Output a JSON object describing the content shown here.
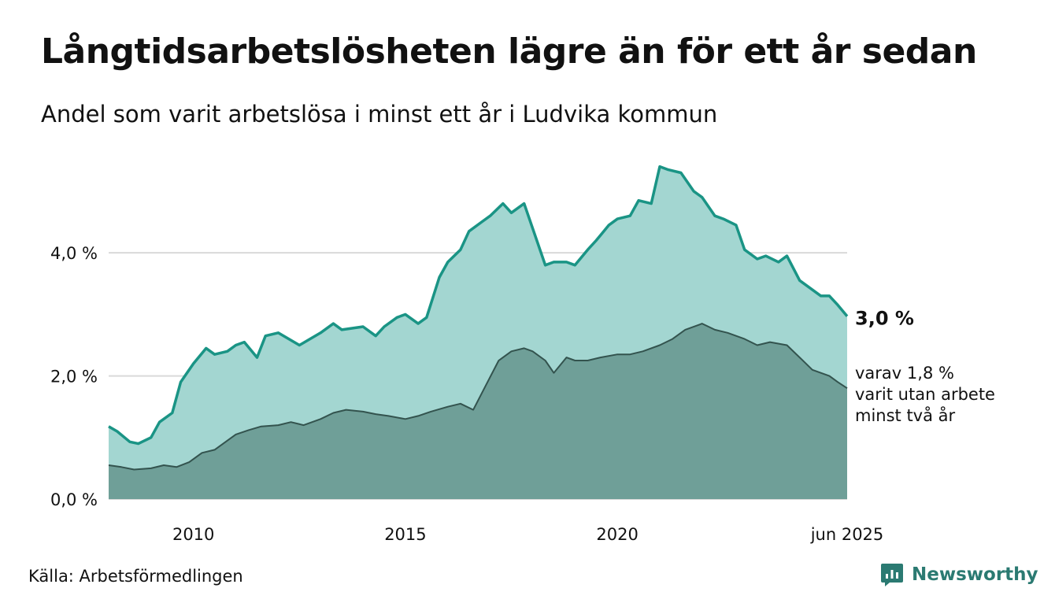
{
  "title": "Långtidsarbetslösheten lägre än för ett år sedan",
  "subtitle": "Andel som varit arbetslösa i minst ett år i Ludvika kommun",
  "source": "Källa: Arbetsförmedlingen",
  "brand": {
    "name": "Newsworthy",
    "icon": "newsworthy-logo-icon",
    "color": "#2b7a72"
  },
  "chart_data": {
    "type": "area",
    "xlim": [
      2008.0,
      2025.42
    ],
    "ylim": [
      0,
      5.6
    ],
    "y_ticks": [
      {
        "value": 0,
        "label": "0,0 %"
      },
      {
        "value": 2,
        "label": "2,0 %"
      },
      {
        "value": 4,
        "label": "4,0 %"
      }
    ],
    "x_ticks": [
      {
        "value": 2010,
        "label": "2010"
      },
      {
        "value": 2015,
        "label": "2015"
      },
      {
        "value": 2020,
        "label": "2020"
      },
      {
        "value": 2025.42,
        "label": "jun 2025"
      }
    ],
    "grid": true,
    "colors": {
      "series1_fill": "#a3d6d1",
      "series1_line": "#1a9485",
      "series2_fill": "#6f9f98",
      "series2_line": "#33534e"
    },
    "end_labels": {
      "series1": "3,0 %",
      "series2": [
        "varav 1,8 %",
        "varit utan arbete",
        "minst två år"
      ]
    },
    "series": [
      {
        "x": [
          2008.0,
          2008.2,
          2008.5,
          2008.7,
          2009.0,
          2009.2,
          2009.5,
          2009.7,
          2010.0,
          2010.3,
          2010.5,
          2010.8,
          2011.0,
          2011.2,
          2011.5,
          2011.7,
          2012.0,
          2012.5,
          2013.0,
          2013.3,
          2013.5,
          2014.0,
          2014.3,
          2014.5,
          2014.8,
          2015.0,
          2015.3,
          2015.5,
          2015.8,
          2016.0,
          2016.3,
          2016.5,
          2016.8,
          2017.0,
          2017.3,
          2017.5,
          2017.8,
          2018.0,
          2018.3,
          2018.5,
          2018.8,
          2019.0,
          2019.3,
          2019.5,
          2019.8,
          2020.0,
          2020.3,
          2020.5,
          2020.8,
          2021.0,
          2021.2,
          2021.5,
          2021.8,
          2022.0,
          2022.3,
          2022.5,
          2022.8,
          2023.0,
          2023.3,
          2023.5,
          2023.8,
          2024.0,
          2024.3,
          2024.5,
          2024.8,
          2025.0,
          2025.2,
          2025.42
        ],
        "values": [
          1.18,
          1.1,
          0.93,
          0.9,
          1.0,
          1.25,
          1.4,
          1.9,
          2.2,
          2.45,
          2.35,
          2.4,
          2.5,
          2.55,
          2.3,
          2.65,
          2.7,
          2.5,
          2.7,
          2.85,
          2.75,
          2.8,
          2.65,
          2.8,
          2.95,
          3.0,
          2.85,
          2.95,
          3.6,
          3.85,
          4.05,
          4.35,
          4.5,
          4.6,
          4.8,
          4.65,
          4.8,
          4.4,
          3.8,
          3.85,
          3.85,
          3.8,
          4.05,
          4.2,
          4.45,
          4.55,
          4.6,
          4.85,
          4.8,
          5.4,
          5.35,
          5.3,
          5.0,
          4.9,
          4.6,
          4.55,
          4.45,
          4.05,
          3.9,
          3.95,
          3.85,
          3.95,
          3.55,
          3.45,
          3.3,
          3.3,
          3.15,
          2.97
        ]
      },
      {
        "x": [
          2008.0,
          2008.3,
          2008.6,
          2009.0,
          2009.3,
          2009.6,
          2009.9,
          2010.2,
          2010.5,
          2010.8,
          2011.0,
          2011.3,
          2011.6,
          2012.0,
          2012.3,
          2012.6,
          2013.0,
          2013.3,
          2013.6,
          2014.0,
          2014.3,
          2014.6,
          2015.0,
          2015.3,
          2015.6,
          2016.0,
          2016.3,
          2016.6,
          2016.9,
          2017.2,
          2017.5,
          2017.8,
          2018.0,
          2018.3,
          2018.5,
          2018.8,
          2019.0,
          2019.3,
          2019.6,
          2020.0,
          2020.3,
          2020.6,
          2021.0,
          2021.3,
          2021.6,
          2022.0,
          2022.3,
          2022.6,
          2023.0,
          2023.3,
          2023.6,
          2024.0,
          2024.3,
          2024.6,
          2025.0,
          2025.2,
          2025.42
        ],
        "values": [
          0.55,
          0.52,
          0.48,
          0.5,
          0.55,
          0.52,
          0.6,
          0.75,
          0.8,
          0.95,
          1.05,
          1.12,
          1.18,
          1.2,
          1.25,
          1.2,
          1.3,
          1.4,
          1.45,
          1.42,
          1.38,
          1.35,
          1.3,
          1.35,
          1.42,
          1.5,
          1.55,
          1.45,
          1.85,
          2.25,
          2.4,
          2.45,
          2.4,
          2.25,
          2.05,
          2.3,
          2.25,
          2.25,
          2.3,
          2.35,
          2.35,
          2.4,
          2.5,
          2.6,
          2.75,
          2.85,
          2.75,
          2.7,
          2.6,
          2.5,
          2.55,
          2.5,
          2.3,
          2.1,
          2.0,
          1.9,
          1.8
        ]
      }
    ]
  }
}
